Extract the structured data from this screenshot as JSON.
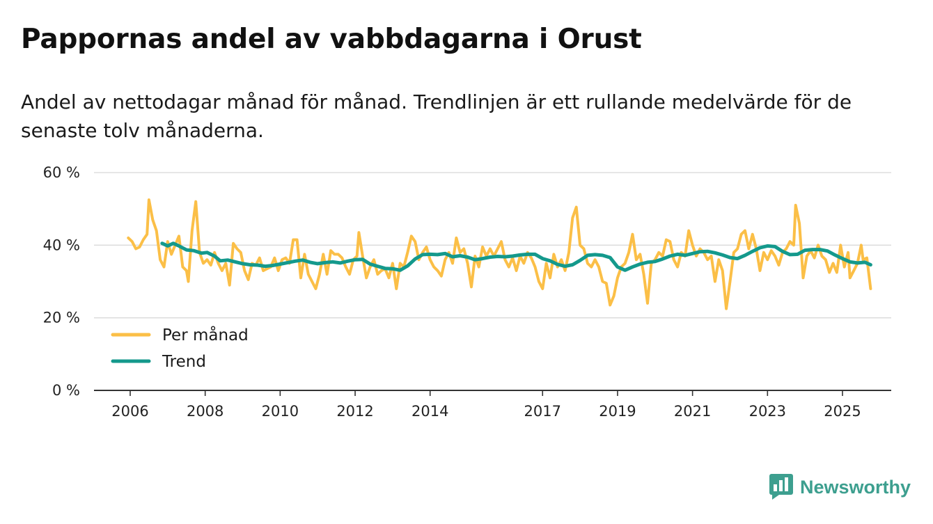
{
  "header": {
    "title": "Pappornas andel av vabbdagarna i Orust",
    "subtitle": "Andel av nettodagar månad för månad. Trendlinjen är ett rullande medelvärde för de senaste tolv månaderna."
  },
  "brand": {
    "name": "Newsworthy",
    "icon": "newsworthy-logo-icon",
    "color": "#3d9f8f"
  },
  "chart_data": {
    "type": "line",
    "title": "Pappornas andel av vabbdagarna i Orust",
    "xlabel": "",
    "ylabel": "",
    "xlim": [
      2005.9,
      2025.6
    ],
    "ylim": [
      0,
      60
    ],
    "y_ticks": [
      0,
      20,
      40,
      60
    ],
    "y_tick_labels": [
      "0 %",
      "20 %",
      "40 %",
      "60 %"
    ],
    "x_ticks": [
      2006,
      2008,
      2010,
      2012,
      2014,
      2017,
      2019,
      2021,
      2023,
      2025
    ],
    "x_tick_labels": [
      "2006",
      "2008",
      "2010",
      "2012",
      "2014",
      "2017",
      "2019",
      "2021",
      "2023",
      "2025"
    ],
    "grid": true,
    "legend": "lower-left",
    "series": [
      {
        "name": "Per månad",
        "color": "#fbbf47",
        "points": [
          [
            2005.95,
            42
          ],
          [
            2006.05,
            41
          ],
          [
            2006.15,
            39
          ],
          [
            2006.25,
            39.5
          ],
          [
            2006.35,
            41.5
          ],
          [
            2006.45,
            43
          ],
          [
            2006.5,
            52.5
          ],
          [
            2006.6,
            47
          ],
          [
            2006.7,
            44
          ],
          [
            2006.8,
            36
          ],
          [
            2006.9,
            34
          ],
          [
            2007.0,
            41
          ],
          [
            2007.1,
            37.5
          ],
          [
            2007.2,
            40
          ],
          [
            2007.3,
            42.5
          ],
          [
            2007.4,
            34
          ],
          [
            2007.5,
            33
          ],
          [
            2007.55,
            30
          ],
          [
            2007.65,
            44
          ],
          [
            2007.75,
            52
          ],
          [
            2007.85,
            38
          ],
          [
            2007.95,
            35
          ],
          [
            2008.05,
            36
          ],
          [
            2008.15,
            34.5
          ],
          [
            2008.25,
            38
          ],
          [
            2008.35,
            35
          ],
          [
            2008.45,
            33
          ],
          [
            2008.55,
            35
          ],
          [
            2008.65,
            29
          ],
          [
            2008.75,
            40.5
          ],
          [
            2008.85,
            39
          ],
          [
            2008.95,
            38
          ],
          [
            2009.05,
            33
          ],
          [
            2009.15,
            30.5
          ],
          [
            2009.25,
            35
          ],
          [
            2009.35,
            34.5
          ],
          [
            2009.45,
            36.5
          ],
          [
            2009.55,
            33
          ],
          [
            2009.65,
            33.5
          ],
          [
            2009.75,
            34
          ],
          [
            2009.85,
            36.5
          ],
          [
            2009.95,
            33
          ],
          [
            2010.05,
            36
          ],
          [
            2010.15,
            36.5
          ],
          [
            2010.25,
            35
          ],
          [
            2010.35,
            41.5
          ],
          [
            2010.45,
            41.5
          ],
          [
            2010.55,
            31
          ],
          [
            2010.65,
            37.5
          ],
          [
            2010.75,
            32
          ],
          [
            2010.85,
            30
          ],
          [
            2010.95,
            28
          ],
          [
            2011.05,
            32
          ],
          [
            2011.15,
            37.5
          ],
          [
            2011.25,
            32
          ],
          [
            2011.35,
            38.5
          ],
          [
            2011.45,
            37.5
          ],
          [
            2011.55,
            37.5
          ],
          [
            2011.65,
            36.5
          ],
          [
            2011.75,
            34
          ],
          [
            2011.85,
            32
          ],
          [
            2011.95,
            36
          ],
          [
            2012.05,
            37
          ],
          [
            2012.1,
            43.5
          ],
          [
            2012.2,
            37
          ],
          [
            2012.3,
            31
          ],
          [
            2012.4,
            34
          ],
          [
            2012.5,
            36
          ],
          [
            2012.6,
            32
          ],
          [
            2012.7,
            33
          ],
          [
            2012.8,
            33.5
          ],
          [
            2012.9,
            31
          ],
          [
            2013.0,
            35
          ],
          [
            2013.1,
            28
          ],
          [
            2013.2,
            35
          ],
          [
            2013.3,
            34
          ],
          [
            2013.4,
            38
          ],
          [
            2013.5,
            42.5
          ],
          [
            2013.6,
            41
          ],
          [
            2013.7,
            36
          ],
          [
            2013.8,
            38
          ],
          [
            2013.9,
            39.5
          ],
          [
            2014.0,
            36
          ],
          [
            2014.1,
            34
          ],
          [
            2014.2,
            33
          ],
          [
            2014.3,
            31.5
          ],
          [
            2014.4,
            36
          ],
          [
            2014.5,
            38
          ],
          [
            2014.6,
            35
          ],
          [
            2014.7,
            42
          ],
          [
            2014.8,
            38
          ],
          [
            2014.9,
            39
          ],
          [
            2015.0,
            35
          ],
          [
            2015.1,
            28.5
          ],
          [
            2015.2,
            37
          ],
          [
            2015.3,
            34
          ],
          [
            2015.4,
            39.5
          ],
          [
            2015.5,
            37
          ],
          [
            2015.6,
            39
          ],
          [
            2015.7,
            37
          ],
          [
            2015.8,
            39
          ],
          [
            2015.9,
            41
          ],
          [
            2016.0,
            36
          ],
          [
            2016.1,
            34
          ],
          [
            2016.2,
            36.5
          ],
          [
            2016.3,
            33
          ],
          [
            2016.4,
            37
          ],
          [
            2016.5,
            35
          ],
          [
            2016.6,
            38
          ],
          [
            2016.7,
            36.5
          ],
          [
            2016.8,
            34
          ],
          [
            2016.9,
            30
          ],
          [
            2017.0,
            28
          ],
          [
            2017.1,
            35
          ],
          [
            2017.2,
            31
          ],
          [
            2017.3,
            37.5
          ],
          [
            2017.4,
            34
          ],
          [
            2017.5,
            36
          ],
          [
            2017.6,
            33
          ],
          [
            2017.7,
            38
          ],
          [
            2017.8,
            47.5
          ],
          [
            2017.9,
            50.5
          ],
          [
            2018.0,
            40
          ],
          [
            2018.1,
            39
          ],
          [
            2018.2,
            35
          ],
          [
            2018.3,
            34
          ],
          [
            2018.4,
            36
          ],
          [
            2018.5,
            34
          ],
          [
            2018.6,
            30
          ],
          [
            2018.7,
            29.5
          ],
          [
            2018.8,
            23.5
          ],
          [
            2018.9,
            26
          ],
          [
            2019.0,
            31
          ],
          [
            2019.1,
            34
          ],
          [
            2019.2,
            35
          ],
          [
            2019.3,
            38
          ],
          [
            2019.4,
            43
          ],
          [
            2019.5,
            36
          ],
          [
            2019.6,
            37.5
          ],
          [
            2019.7,
            32
          ],
          [
            2019.8,
            24
          ],
          [
            2019.9,
            35
          ],
          [
            2020.0,
            36
          ],
          [
            2020.1,
            38
          ],
          [
            2020.2,
            37
          ],
          [
            2020.3,
            41.5
          ],
          [
            2020.4,
            41
          ],
          [
            2020.5,
            36
          ],
          [
            2020.6,
            34
          ],
          [
            2020.7,
            38
          ],
          [
            2020.8,
            37
          ],
          [
            2020.9,
            44
          ],
          [
            2021.0,
            40
          ],
          [
            2021.1,
            37
          ],
          [
            2021.2,
            39
          ],
          [
            2021.3,
            38
          ],
          [
            2021.4,
            36
          ],
          [
            2021.5,
            37
          ],
          [
            2021.6,
            30
          ],
          [
            2021.7,
            36
          ],
          [
            2021.8,
            33
          ],
          [
            2021.9,
            22.5
          ],
          [
            2022.0,
            30
          ],
          [
            2022.1,
            38
          ],
          [
            2022.2,
            39
          ],
          [
            2022.3,
            43
          ],
          [
            2022.4,
            44
          ],
          [
            2022.5,
            39
          ],
          [
            2022.6,
            43
          ],
          [
            2022.7,
            39
          ],
          [
            2022.8,
            33
          ],
          [
            2022.9,
            38
          ],
          [
            2023.0,
            36
          ],
          [
            2023.1,
            38.5
          ],
          [
            2023.2,
            37
          ],
          [
            2023.3,
            34.5
          ],
          [
            2023.4,
            38
          ],
          [
            2023.5,
            39
          ],
          [
            2023.6,
            41
          ],
          [
            2023.7,
            40
          ],
          [
            2023.75,
            51
          ],
          [
            2023.85,
            46
          ],
          [
            2023.95,
            31
          ],
          [
            2024.05,
            37
          ],
          [
            2024.15,
            38.5
          ],
          [
            2024.25,
            36.5
          ],
          [
            2024.35,
            40
          ],
          [
            2024.45,
            37
          ],
          [
            2024.55,
            36
          ],
          [
            2024.65,
            32.5
          ],
          [
            2024.75,
            35
          ],
          [
            2024.85,
            32.5
          ],
          [
            2024.95,
            40
          ],
          [
            2025.05,
            34
          ],
          [
            2025.15,
            38
          ],
          [
            2025.2,
            31
          ],
          [
            2025.3,
            33
          ],
          [
            2025.4,
            35
          ],
          [
            2025.5,
            40
          ],
          [
            2025.55,
            36
          ],
          [
            2025.65,
            36.5
          ],
          [
            2025.75,
            28
          ]
        ]
      },
      {
        "name": "Trend",
        "color": "#14998c",
        "points": [
          [
            2006.85,
            40.5
          ],
          [
            2007.0,
            39.8
          ],
          [
            2007.15,
            40.5
          ],
          [
            2007.3,
            39.8
          ],
          [
            2007.5,
            38.7
          ],
          [
            2007.7,
            38.5
          ],
          [
            2007.9,
            37.8
          ],
          [
            2008.05,
            38
          ],
          [
            2008.25,
            37
          ],
          [
            2008.4,
            35.7
          ],
          [
            2008.6,
            35.9
          ],
          [
            2008.8,
            35.4
          ],
          [
            2009.0,
            34.9
          ],
          [
            2009.2,
            34.6
          ],
          [
            2009.4,
            34.5
          ],
          [
            2009.6,
            34.2
          ],
          [
            2009.8,
            34.4
          ],
          [
            2010.0,
            34.8
          ],
          [
            2010.2,
            35.2
          ],
          [
            2010.4,
            35.6
          ],
          [
            2010.6,
            35.9
          ],
          [
            2010.8,
            35.3
          ],
          [
            2011.0,
            34.9
          ],
          [
            2011.2,
            35.2
          ],
          [
            2011.4,
            35.4
          ],
          [
            2011.6,
            35.1
          ],
          [
            2011.8,
            35.6
          ],
          [
            2012.0,
            36
          ],
          [
            2012.2,
            36.1
          ],
          [
            2012.4,
            34.8
          ],
          [
            2012.6,
            34.2
          ],
          [
            2012.8,
            33.6
          ],
          [
            2013.0,
            33.5
          ],
          [
            2013.2,
            33.1
          ],
          [
            2013.4,
            34.3
          ],
          [
            2013.6,
            36.2
          ],
          [
            2013.8,
            37.4
          ],
          [
            2014.0,
            37.5
          ],
          [
            2014.2,
            37.4
          ],
          [
            2014.4,
            37.7
          ],
          [
            2014.6,
            36.8
          ],
          [
            2014.8,
            37.1
          ],
          [
            2015.0,
            36.7
          ],
          [
            2015.2,
            36
          ],
          [
            2015.4,
            36.3
          ],
          [
            2015.6,
            36.7
          ],
          [
            2015.8,
            36.9
          ],
          [
            2016.0,
            36.8
          ],
          [
            2016.2,
            37
          ],
          [
            2016.4,
            37.3
          ],
          [
            2016.6,
            37.5
          ],
          [
            2016.8,
            37.5
          ],
          [
            2017.0,
            36.3
          ],
          [
            2017.2,
            35.7
          ],
          [
            2017.4,
            34.7
          ],
          [
            2017.6,
            34.2
          ],
          [
            2017.8,
            34.6
          ],
          [
            2018.0,
            35.8
          ],
          [
            2018.2,
            37.2
          ],
          [
            2018.4,
            37.4
          ],
          [
            2018.6,
            37.2
          ],
          [
            2018.8,
            36.6
          ],
          [
            2019.0,
            34
          ],
          [
            2019.2,
            33.1
          ],
          [
            2019.4,
            34
          ],
          [
            2019.6,
            34.8
          ],
          [
            2019.8,
            35.3
          ],
          [
            2020.0,
            35.5
          ],
          [
            2020.2,
            36.2
          ],
          [
            2020.4,
            37
          ],
          [
            2020.6,
            37.5
          ],
          [
            2020.8,
            37.2
          ],
          [
            2021.0,
            37.7
          ],
          [
            2021.2,
            38.2
          ],
          [
            2021.4,
            38.3
          ],
          [
            2021.6,
            37.9
          ],
          [
            2021.8,
            37.3
          ],
          [
            2022.0,
            36.6
          ],
          [
            2022.2,
            36.3
          ],
          [
            2022.4,
            37.2
          ],
          [
            2022.6,
            38.3
          ],
          [
            2022.8,
            39.3
          ],
          [
            2023.0,
            39.8
          ],
          [
            2023.2,
            39.6
          ],
          [
            2023.4,
            38.3
          ],
          [
            2023.6,
            37.4
          ],
          [
            2023.8,
            37.5
          ],
          [
            2024.0,
            38.6
          ],
          [
            2024.2,
            38.8
          ],
          [
            2024.4,
            38.8
          ],
          [
            2024.6,
            38.4
          ],
          [
            2024.8,
            37.3
          ],
          [
            2025.0,
            36.3
          ],
          [
            2025.2,
            35.4
          ],
          [
            2025.4,
            35.1
          ],
          [
            2025.6,
            35.3
          ],
          [
            2025.75,
            34.6
          ]
        ]
      }
    ]
  }
}
